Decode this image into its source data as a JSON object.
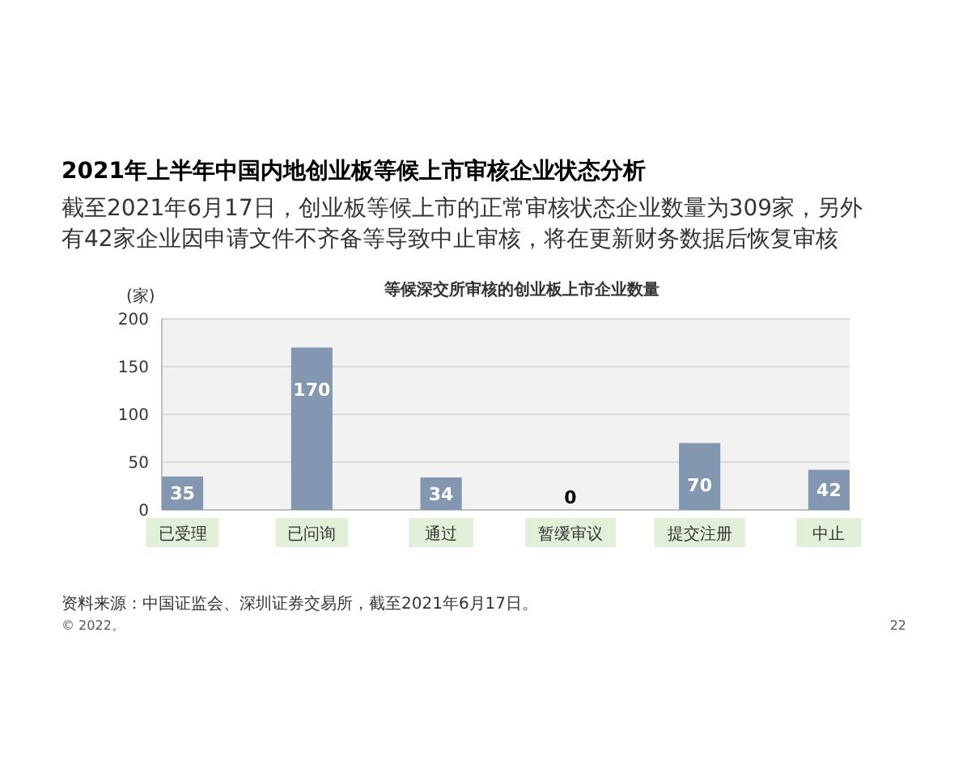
{
  "chart_data": {
    "type": "bar",
    "title": "2021年上半年中国内地创业板等候上市审核企业状态分析",
    "subtitle": "截至2021年6月17日，创业板等候上市的正常审核状态企业数量为309家，另外有42家企业因申请文件不齐备等导致中止审核，将在更新财务数据后恢复审核",
    "annotations": [
      "等候深交所审核的创业板上市企业数量",
      "资料来源：中国证监会、深圳证券交易所，截至2021年6月17日。",
      "© 2022。",
      "22"
    ],
    "ylabel": "(家)",
    "categories": [
      "已受理",
      "已问询",
      "通过",
      "暂缓审议",
      "提交注册",
      "中止"
    ],
    "values": [
      35,
      170,
      34,
      0,
      70,
      42
    ],
    "color": "#8497b0",
    "ylim": [
      0,
      200
    ],
    "yticks": [
      0,
      50,
      100,
      150,
      200
    ],
    "grid": "y",
    "data_labels": true
  }
}
